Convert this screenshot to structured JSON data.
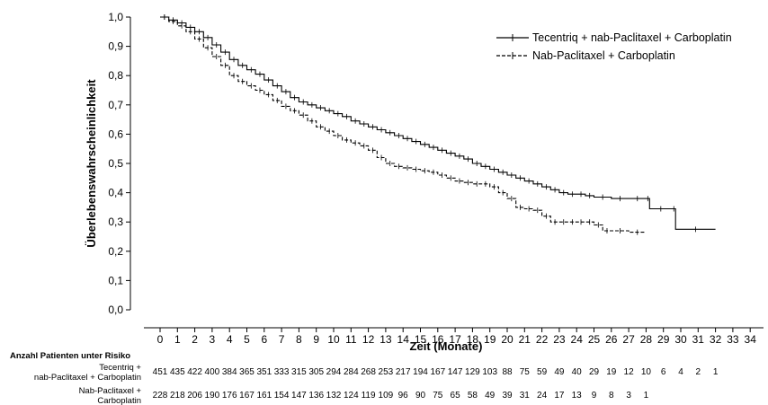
{
  "chart_data": {
    "type": "line",
    "subtype": "kaplan-meier",
    "title": "",
    "xlabel": "Zeit (Monate)",
    "ylabel": "Überlebenswahrscheinlichkeit",
    "xlim": [
      -1,
      35
    ],
    "ylim": [
      0,
      1
    ],
    "x_ticks": [
      "0",
      "1",
      "2",
      "3",
      "4",
      "5",
      "6",
      "7",
      "8",
      "9",
      "10",
      "11",
      "12",
      "13",
      "14",
      "15",
      "16",
      "17",
      "18",
      "19",
      "20",
      "21",
      "22",
      "23",
      "24",
      "25",
      "26",
      "27",
      "28",
      "29",
      "30",
      "31",
      "32",
      "33",
      "34"
    ],
    "y_ticks": [
      "0,0",
      "0,1",
      "0,2",
      "0,3",
      "0,4",
      "0,5",
      "0,6",
      "0,7",
      "0,8",
      "0,9",
      "1,0"
    ],
    "legend_position": "top-right",
    "grid": false,
    "series": [
      {
        "name": "Tecentriq + nab-Paclitaxel + Carboplatin",
        "line_style": "solid",
        "x": [
          0,
          0.5,
          1,
          1.5,
          2,
          2.5,
          3,
          3.5,
          4,
          4.5,
          5,
          5.5,
          6,
          6.5,
          7,
          7.5,
          8,
          8.5,
          9,
          9.5,
          10,
          10.5,
          11,
          11.5,
          12,
          12.5,
          13,
          13.5,
          14,
          14.5,
          15,
          15.5,
          16,
          16.5,
          17,
          17.5,
          18,
          18.5,
          19,
          19.5,
          20,
          20.5,
          21,
          21.5,
          22,
          22.5,
          23,
          23.5,
          24,
          24.5,
          25,
          26,
          27,
          28,
          28.2,
          29.5,
          29.7,
          32
        ],
        "y": [
          1.0,
          0.99,
          0.98,
          0.965,
          0.95,
          0.93,
          0.905,
          0.88,
          0.855,
          0.835,
          0.82,
          0.805,
          0.785,
          0.765,
          0.745,
          0.725,
          0.71,
          0.7,
          0.69,
          0.68,
          0.67,
          0.66,
          0.645,
          0.635,
          0.625,
          0.615,
          0.605,
          0.595,
          0.585,
          0.575,
          0.565,
          0.555,
          0.545,
          0.535,
          0.525,
          0.515,
          0.5,
          0.49,
          0.48,
          0.47,
          0.46,
          0.45,
          0.44,
          0.43,
          0.42,
          0.41,
          0.4,
          0.395,
          0.395,
          0.39,
          0.385,
          0.38,
          0.38,
          0.38,
          0.345,
          0.345,
          0.275,
          0.275
        ]
      },
      {
        "name": "Nab-Paclitaxel + Carboplatin",
        "line_style": "dashed",
        "x": [
          0,
          0.5,
          1,
          1.5,
          2,
          2.5,
          3,
          3.5,
          4,
          4.5,
          5,
          5.5,
          6,
          6.5,
          7,
          7.5,
          8,
          8.5,
          9,
          9.5,
          10,
          10.5,
          11,
          11.5,
          12,
          12.5,
          13,
          13.5,
          14,
          14.5,
          15,
          15.5,
          16,
          16.5,
          17,
          17.5,
          18,
          18.5,
          19,
          19.5,
          20,
          20.5,
          21,
          21.5,
          22,
          22.5,
          23,
          23.5,
          24,
          24.5,
          25,
          25.5,
          26,
          27,
          28
        ],
        "y": [
          1.0,
          0.985,
          0.97,
          0.95,
          0.925,
          0.895,
          0.865,
          0.835,
          0.8,
          0.78,
          0.765,
          0.75,
          0.735,
          0.715,
          0.695,
          0.68,
          0.665,
          0.645,
          0.625,
          0.61,
          0.595,
          0.58,
          0.57,
          0.56,
          0.545,
          0.52,
          0.5,
          0.49,
          0.485,
          0.48,
          0.475,
          0.47,
          0.46,
          0.45,
          0.44,
          0.435,
          0.43,
          0.43,
          0.42,
          0.4,
          0.38,
          0.35,
          0.345,
          0.34,
          0.32,
          0.3,
          0.3,
          0.3,
          0.3,
          0.3,
          0.29,
          0.27,
          0.27,
          0.265,
          0.265
        ]
      }
    ],
    "risk_table": {
      "title": "Anzahl Patienten unter Risiko",
      "rows": [
        {
          "label_line1": "Tecentriq +",
          "label_line2": "nab-Paclitaxel + Carboplatin",
          "values": [
            "451",
            "435",
            "422",
            "400",
            "384",
            "365",
            "351",
            "333",
            "315",
            "305",
            "294",
            "284",
            "268",
            "253",
            "217",
            "194",
            "167",
            "147",
            "129",
            "103",
            "88",
            "75",
            "59",
            "49",
            "40",
            "29",
            "19",
            "12",
            "10",
            "6",
            "4",
            "2",
            "1"
          ]
        },
        {
          "label_line1": "Nab-Paclitaxel +",
          "label_line2": "Carboplatin",
          "values": [
            "228",
            "218",
            "206",
            "190",
            "176",
            "167",
            "161",
            "154",
            "147",
            "136",
            "132",
            "124",
            "119",
            "109",
            "96",
            "90",
            "75",
            "65",
            "58",
            "49",
            "39",
            "31",
            "24",
            "17",
            "13",
            "9",
            "8",
            "3",
            "1"
          ]
        }
      ]
    }
  }
}
